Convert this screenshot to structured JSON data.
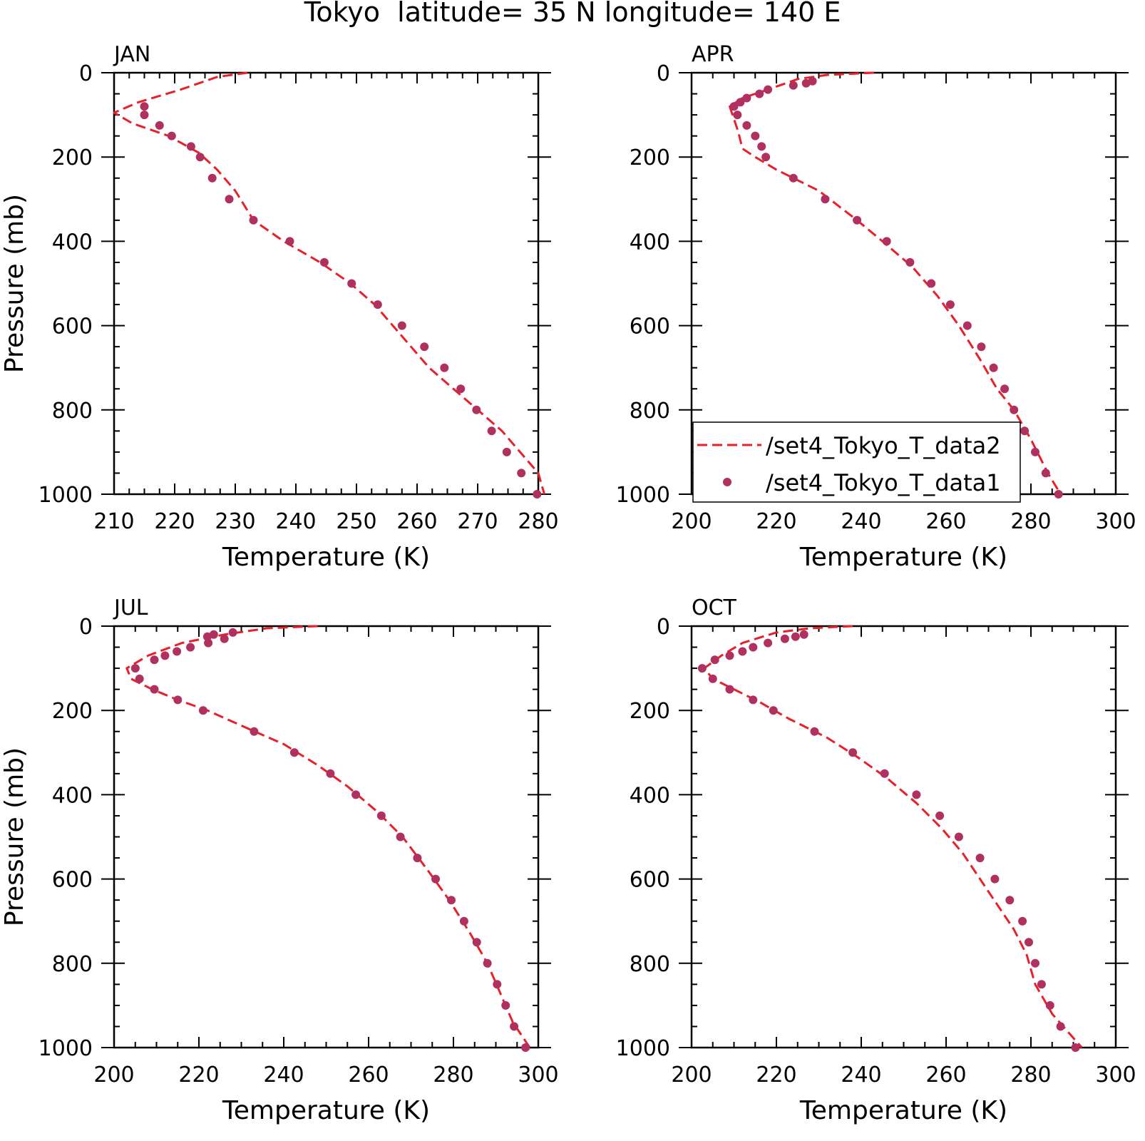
{
  "figure": {
    "title": "Tokyo  latitude= 35 N longitude= 140 E"
  },
  "legend": {
    "entries": [
      {
        "label": "/set4_Tokyo_T_data2",
        "style": "dashed-line",
        "color": "#e8202a"
      },
      {
        "label": "/set4_Tokyo_T_data1",
        "style": "dot",
        "color": "#b03060"
      }
    ]
  },
  "colors": {
    "line": "#e8202a",
    "marker": "#b03060",
    "axis": "#000000"
  },
  "chart_data": [
    {
      "type": "line",
      "panel": "JAN",
      "xlabel": "Temperature (K)",
      "ylabel": "Pressure (mb)",
      "xlim": [
        210,
        280
      ],
      "ylim": [
        1000,
        0
      ],
      "xticks": [
        210,
        220,
        230,
        240,
        250,
        260,
        270,
        280
      ],
      "yticks": [
        0,
        200,
        400,
        600,
        800,
        1000
      ],
      "series": [
        {
          "name": "/set4_Tokyo_T_data2",
          "style": "dashed-line",
          "points": [
            [
              232,
              0
            ],
            [
              227,
              10
            ],
            [
              221,
              40
            ],
            [
              214,
              70
            ],
            [
              210,
              95
            ],
            [
              213,
              120
            ],
            [
              219,
              150
            ],
            [
              224,
              190
            ],
            [
              227,
              230
            ],
            [
              230,
              280
            ],
            [
              233,
              350
            ],
            [
              238,
              400
            ],
            [
              244,
              450
            ],
            [
              249,
              500
            ],
            [
              253,
              550
            ],
            [
              256,
              600
            ],
            [
              259,
              650
            ],
            [
              262,
              700
            ],
            [
              266,
              750
            ],
            [
              270,
              800
            ],
            [
              274,
              850
            ],
            [
              277,
              900
            ],
            [
              280,
              950
            ],
            [
              281,
              1000
            ]
          ]
        },
        {
          "name": "/set4_Tokyo_T_data1",
          "style": "dot",
          "points": [
            [
              215,
              80
            ],
            [
              215,
              100
            ],
            [
              217.5,
              125
            ],
            [
              219.5,
              150
            ],
            [
              222.7,
              175
            ],
            [
              224.2,
              200
            ],
            [
              226.2,
              250
            ],
            [
              229,
              300
            ],
            [
              233,
              350
            ],
            [
              239,
              400
            ],
            [
              244.7,
              450
            ],
            [
              249.2,
              500
            ],
            [
              253.5,
              550
            ],
            [
              257.5,
              600
            ],
            [
              261.2,
              650
            ],
            [
              264.5,
              700
            ],
            [
              267.2,
              750
            ],
            [
              269.8,
              800
            ],
            [
              272.3,
              850
            ],
            [
              274.8,
              900
            ],
            [
              277.2,
              950
            ],
            [
              279.8,
              1000
            ]
          ]
        }
      ]
    },
    {
      "type": "line",
      "panel": "APR",
      "xlabel": "Temperature (K)",
      "ylabel": "",
      "xlim": [
        200,
        300
      ],
      "ylim": [
        1000,
        0
      ],
      "xticks": [
        200,
        220,
        240,
        260,
        280,
        300
      ],
      "yticks": [
        0,
        200,
        400,
        600,
        800,
        1000
      ],
      "series": [
        {
          "name": "/set4_Tokyo_T_data2",
          "style": "dashed-line",
          "points": [
            [
              243,
              0
            ],
            [
              232,
              5
            ],
            [
              225,
              15
            ],
            [
              218,
              40
            ],
            [
              212,
              60
            ],
            [
              209,
              80
            ],
            [
              210,
              110
            ],
            [
              211,
              140
            ],
            [
              211.5,
              160
            ],
            [
              212,
              180
            ],
            [
              215,
              200
            ],
            [
              220,
              230
            ],
            [
              230,
              280
            ],
            [
              239,
              350
            ],
            [
              245,
              400
            ],
            [
              252,
              460
            ],
            [
              258,
              530
            ],
            [
              263,
              600
            ],
            [
              268,
              680
            ],
            [
              272,
              750
            ],
            [
              276,
              800
            ],
            [
              280,
              870
            ],
            [
              284,
              950
            ],
            [
              287,
              1000
            ]
          ]
        },
        {
          "name": "/set4_Tokyo_T_data1",
          "style": "dot",
          "points": [
            [
              228.5,
              20
            ],
            [
              227,
              25
            ],
            [
              224,
              30
            ],
            [
              218,
              40
            ],
            [
              216,
              50
            ],
            [
              213,
              60
            ],
            [
              211.5,
              70
            ],
            [
              210,
              80
            ],
            [
              210.8,
              100
            ],
            [
              213,
              125
            ],
            [
              215,
              150
            ],
            [
              216.5,
              175
            ],
            [
              217.5,
              200
            ],
            [
              224,
              250
            ],
            [
              231.5,
              300
            ],
            [
              239,
              350
            ],
            [
              246,
              400
            ],
            [
              251.5,
              450
            ],
            [
              256.5,
              500
            ],
            [
              261,
              550
            ],
            [
              265,
              600
            ],
            [
              268.3,
              650
            ],
            [
              271.2,
              700
            ],
            [
              273.8,
              750
            ],
            [
              276,
              800
            ],
            [
              278.5,
              850
            ],
            [
              281,
              900
            ],
            [
              283.5,
              950
            ],
            [
              286.5,
              1000
            ]
          ]
        }
      ]
    },
    {
      "type": "line",
      "panel": "JUL",
      "xlabel": "Temperature (K)",
      "ylabel": "Pressure (mb)",
      "xlim": [
        200,
        300
      ],
      "ylim": [
        1000,
        0
      ],
      "xticks": [
        200,
        220,
        240,
        260,
        280,
        300
      ],
      "yticks": [
        0,
        200,
        400,
        600,
        800,
        1000
      ],
      "series": [
        {
          "name": "/set4_Tokyo_T_data2",
          "style": "dashed-line",
          "points": [
            [
              248,
              0
            ],
            [
              236,
              5
            ],
            [
              226,
              20
            ],
            [
              216,
              40
            ],
            [
              208,
              70
            ],
            [
              203,
              100
            ],
            [
              204,
              125
            ],
            [
              209,
              150
            ],
            [
              215,
              175
            ],
            [
              222,
              200
            ],
            [
              232,
              245
            ],
            [
              240,
              280
            ],
            [
              248,
              330
            ],
            [
              255,
              380
            ],
            [
              262,
              440
            ],
            [
              268,
              500
            ],
            [
              274,
              580
            ],
            [
              279,
              650
            ],
            [
              284,
              730
            ],
            [
              288,
              800
            ],
            [
              291,
              870
            ],
            [
              294,
              940
            ],
            [
              298,
              1000
            ]
          ]
        },
        {
          "name": "/set4_Tokyo_T_data1",
          "style": "dot",
          "points": [
            [
              228,
              15
            ],
            [
              223.5,
              20
            ],
            [
              222,
              25
            ],
            [
              226,
              30
            ],
            [
              222.2,
              40
            ],
            [
              218,
              50
            ],
            [
              214.8,
              60
            ],
            [
              212,
              70
            ],
            [
              209.5,
              80
            ],
            [
              205,
              100
            ],
            [
              206,
              125
            ],
            [
              209.5,
              150
            ],
            [
              215,
              175
            ],
            [
              221,
              200
            ],
            [
              233,
              250
            ],
            [
              242.5,
              300
            ],
            [
              251,
              350
            ],
            [
              257,
              400
            ],
            [
              263,
              450
            ],
            [
              267.5,
              500
            ],
            [
              271.5,
              550
            ],
            [
              275.8,
              600
            ],
            [
              279.5,
              650
            ],
            [
              282.5,
              700
            ],
            [
              285.5,
              750
            ],
            [
              288,
              800
            ],
            [
              290.3,
              850
            ],
            [
              292.3,
              900
            ],
            [
              294.3,
              950
            ],
            [
              297,
              1000
            ]
          ]
        }
      ]
    },
    {
      "type": "line",
      "panel": "OCT",
      "xlabel": "Temperature (K)",
      "ylabel": "",
      "xlim": [
        200,
        300
      ],
      "ylim": [
        1000,
        0
      ],
      "xticks": [
        200,
        220,
        240,
        260,
        280,
        300
      ],
      "yticks": [
        0,
        200,
        400,
        600,
        800,
        1000
      ],
      "series": [
        {
          "name": "/set4_Tokyo_T_data2",
          "style": "dashed-line",
          "points": [
            [
              238,
              0
            ],
            [
              228,
              5
            ],
            [
              220,
              15
            ],
            [
              212,
              40
            ],
            [
              207,
              70
            ],
            [
              203,
              100
            ],
            [
              205,
              125
            ],
            [
              210,
              150
            ],
            [
              216,
              180
            ],
            [
              223,
              220
            ],
            [
              232,
              265
            ],
            [
              239,
              310
            ],
            [
              246,
              360
            ],
            [
              253,
              420
            ],
            [
              259,
              480
            ],
            [
              264,
              540
            ],
            [
              268,
              600
            ],
            [
              272,
              660
            ],
            [
              276,
              720
            ],
            [
              279,
              780
            ],
            [
              281,
              850
            ],
            [
              285,
              920
            ],
            [
              292,
              1000
            ]
          ]
        },
        {
          "name": "/set4_Tokyo_T_data1",
          "style": "dot",
          "points": [
            [
              226.5,
              20
            ],
            [
              224.5,
              25
            ],
            [
              222,
              30
            ],
            [
              218,
              40
            ],
            [
              214.5,
              50
            ],
            [
              212,
              60
            ],
            [
              209,
              70
            ],
            [
              205.5,
              80
            ],
            [
              202.5,
              100
            ],
            [
              205,
              125
            ],
            [
              209,
              150
            ],
            [
              214.5,
              175
            ],
            [
              219.3,
              200
            ],
            [
              229,
              250
            ],
            [
              238,
              300
            ],
            [
              245.5,
              350
            ],
            [
              253,
              400
            ],
            [
              258.5,
              450
            ],
            [
              263,
              500
            ],
            [
              268,
              550
            ],
            [
              271.5,
              600
            ],
            [
              275,
              650
            ],
            [
              278,
              700
            ],
            [
              279.5,
              750
            ],
            [
              281,
              800
            ],
            [
              282.5,
              850
            ],
            [
              284.5,
              900
            ],
            [
              287,
              950
            ],
            [
              290.5,
              1000
            ]
          ]
        }
      ]
    }
  ]
}
